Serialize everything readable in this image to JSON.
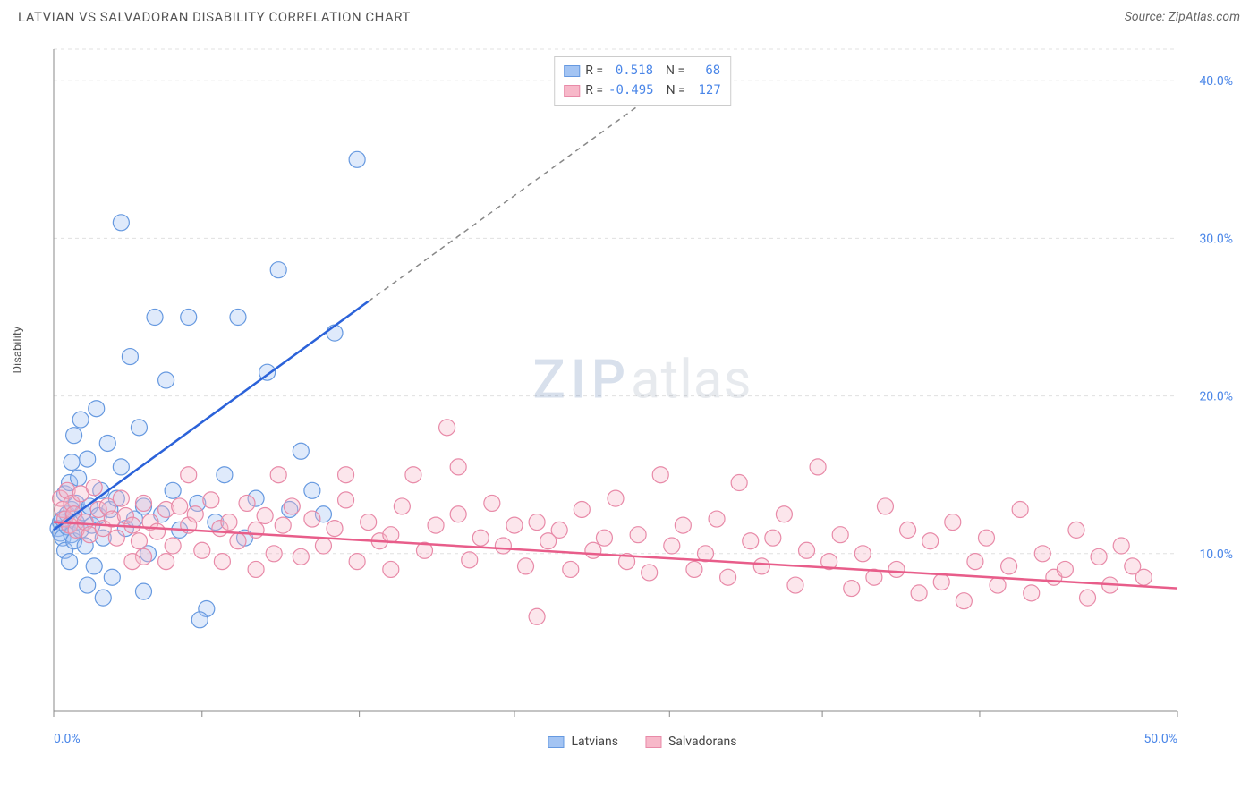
{
  "title": "LATVIAN VS SALVADORAN DISABILITY CORRELATION CHART",
  "source": "Source: ZipAtlas.com",
  "ylabel": "Disability",
  "watermark_a": "ZIP",
  "watermark_b": "atlas",
  "chart": {
    "type": "scatter",
    "xlim": [
      0,
      50
    ],
    "ylim": [
      0,
      42
    ],
    "xtick_positions": [
      0,
      6.6,
      13.6,
      20.5,
      27.4,
      34.2,
      41.2,
      50
    ],
    "xtick_labels": {
      "0": "0.0%",
      "50": "50.0%"
    },
    "ytick_positions": [
      10,
      20,
      30,
      40
    ],
    "ytick_labels": [
      "10.0%",
      "20.0%",
      "30.0%",
      "40.0%"
    ],
    "grid_color": "#e0e0e0",
    "grid_dash": "4,4",
    "axis_color": "#888888",
    "background_color": "#ffffff",
    "marker_radius": 9,
    "marker_stroke_width": 1.2,
    "marker_fill_opacity": 0.35,
    "series": [
      {
        "name": "Latvians",
        "color_fill": "#a3c4f3",
        "color_stroke": "#6699e0",
        "line_color": "#2b62d9",
        "R": "0.518",
        "N": "68",
        "trend": {
          "x1": 0,
          "y1": 11.5,
          "x2": 14,
          "y2": 26,
          "dash_x2": 29,
          "dash_y2": 41.5
        },
        "points": [
          [
            0.2,
            11.6
          ],
          [
            0.3,
            12.0
          ],
          [
            0.3,
            11.3
          ],
          [
            0.4,
            12.2
          ],
          [
            0.4,
            11.0
          ],
          [
            0.5,
            13.8
          ],
          [
            0.5,
            10.2
          ],
          [
            0.6,
            12.5
          ],
          [
            0.6,
            11.7
          ],
          [
            0.7,
            14.5
          ],
          [
            0.7,
            9.5
          ],
          [
            0.8,
            12.8
          ],
          [
            0.8,
            11.2
          ],
          [
            0.9,
            17.5
          ],
          [
            0.9,
            10.8
          ],
          [
            1.0,
            12.0
          ],
          [
            1.0,
            13.2
          ],
          [
            1.1,
            14.8
          ],
          [
            1.2,
            18.5
          ],
          [
            1.2,
            11.5
          ],
          [
            1.3,
            12.6
          ],
          [
            1.4,
            10.5
          ],
          [
            1.5,
            16.0
          ],
          [
            1.6,
            13.0
          ],
          [
            1.7,
            11.8
          ],
          [
            1.8,
            9.2
          ],
          [
            1.9,
            19.2
          ],
          [
            2.0,
            12.4
          ],
          [
            2.1,
            14.0
          ],
          [
            2.2,
            11.0
          ],
          [
            2.4,
            17.0
          ],
          [
            2.5,
            12.8
          ],
          [
            2.6,
            8.5
          ],
          [
            2.8,
            13.5
          ],
          [
            3.0,
            15.5
          ],
          [
            3.2,
            11.6
          ],
          [
            3.4,
            22.5
          ],
          [
            3.6,
            12.2
          ],
          [
            3.8,
            18.0
          ],
          [
            4.0,
            13.0
          ],
          [
            4.2,
            10.0
          ],
          [
            4.5,
            25.0
          ],
          [
            4.8,
            12.5
          ],
          [
            5.0,
            21.0
          ],
          [
            5.3,
            14.0
          ],
          [
            5.6,
            11.5
          ],
          [
            6.0,
            25.0
          ],
          [
            6.4,
            13.2
          ],
          [
            6.8,
            6.5
          ],
          [
            7.2,
            12.0
          ],
          [
            7.6,
            15.0
          ],
          [
            8.2,
            25.0
          ],
          [
            8.5,
            11.0
          ],
          [
            9.0,
            13.5
          ],
          [
            9.5,
            21.5
          ],
          [
            10.0,
            28.0
          ],
          [
            10.5,
            12.8
          ],
          [
            11.0,
            16.5
          ],
          [
            11.5,
            14.0
          ],
          [
            12.0,
            12.5
          ],
          [
            12.5,
            24.0
          ],
          [
            3.0,
            31.0
          ],
          [
            4.0,
            7.6
          ],
          [
            6.5,
            5.8
          ],
          [
            1.5,
            8.0
          ],
          [
            2.2,
            7.2
          ],
          [
            0.8,
            15.8
          ],
          [
            13.5,
            35.0
          ]
        ]
      },
      {
        "name": "Salvadorans",
        "color_fill": "#f7b8c9",
        "color_stroke": "#e88aa8",
        "line_color": "#e85d8a",
        "R": "-0.495",
        "N": "127",
        "trend": {
          "x1": 0,
          "y1": 12.0,
          "x2": 50,
          "y2": 7.8
        },
        "points": [
          [
            0.3,
            13.5
          ],
          [
            0.4,
            12.8
          ],
          [
            0.5,
            12.2
          ],
          [
            0.6,
            14.0
          ],
          [
            0.7,
            11.8
          ],
          [
            0.8,
            13.2
          ],
          [
            0.9,
            12.5
          ],
          [
            1.0,
            11.5
          ],
          [
            1.2,
            13.8
          ],
          [
            1.4,
            12.0
          ],
          [
            1.6,
            11.2
          ],
          [
            1.8,
            14.2
          ],
          [
            2.0,
            12.8
          ],
          [
            2.2,
            11.6
          ],
          [
            2.4,
            13.0
          ],
          [
            2.6,
            12.2
          ],
          [
            2.8,
            11.0
          ],
          [
            3.0,
            13.5
          ],
          [
            3.2,
            12.4
          ],
          [
            3.5,
            11.8
          ],
          [
            3.8,
            10.8
          ],
          [
            4.0,
            13.2
          ],
          [
            4.3,
            12.0
          ],
          [
            4.6,
            11.4
          ],
          [
            5.0,
            12.8
          ],
          [
            5.3,
            10.5
          ],
          [
            5.6,
            13.0
          ],
          [
            6.0,
            11.8
          ],
          [
            6.3,
            12.5
          ],
          [
            6.6,
            10.2
          ],
          [
            7.0,
            13.4
          ],
          [
            7.4,
            11.6
          ],
          [
            7.8,
            12.0
          ],
          [
            8.2,
            10.8
          ],
          [
            8.6,
            13.2
          ],
          [
            9.0,
            11.5
          ],
          [
            9.4,
            12.4
          ],
          [
            9.8,
            10.0
          ],
          [
            10.2,
            11.8
          ],
          [
            10.6,
            13.0
          ],
          [
            11.0,
            9.8
          ],
          [
            11.5,
            12.2
          ],
          [
            12.0,
            10.5
          ],
          [
            12.5,
            11.6
          ],
          [
            13.0,
            13.4
          ],
          [
            13.5,
            9.5
          ],
          [
            14.0,
            12.0
          ],
          [
            14.5,
            10.8
          ],
          [
            15.0,
            11.2
          ],
          [
            15.5,
            13.0
          ],
          [
            16.0,
            15.0
          ],
          [
            16.5,
            10.2
          ],
          [
            17.0,
            11.8
          ],
          [
            17.5,
            18.0
          ],
          [
            18.0,
            12.5
          ],
          [
            18.5,
            9.6
          ],
          [
            19.0,
            11.0
          ],
          [
            19.5,
            13.2
          ],
          [
            20.0,
            10.5
          ],
          [
            20.5,
            11.8
          ],
          [
            21.0,
            9.2
          ],
          [
            21.5,
            12.0
          ],
          [
            22.0,
            10.8
          ],
          [
            22.5,
            11.5
          ],
          [
            23.0,
            9.0
          ],
          [
            23.5,
            12.8
          ],
          [
            24.0,
            10.2
          ],
          [
            24.5,
            11.0
          ],
          [
            25.0,
            13.5
          ],
          [
            25.5,
            9.5
          ],
          [
            26.0,
            11.2
          ],
          [
            26.5,
            8.8
          ],
          [
            27.0,
            15.0
          ],
          [
            27.5,
            10.5
          ],
          [
            28.0,
            11.8
          ],
          [
            28.5,
            9.0
          ],
          [
            29.0,
            10.0
          ],
          [
            29.5,
            12.2
          ],
          [
            30.0,
            8.5
          ],
          [
            30.5,
            14.5
          ],
          [
            31.0,
            10.8
          ],
          [
            31.5,
            9.2
          ],
          [
            32.0,
            11.0
          ],
          [
            32.5,
            12.5
          ],
          [
            33.0,
            8.0
          ],
          [
            33.5,
            10.2
          ],
          [
            34.0,
            15.5
          ],
          [
            34.5,
            9.5
          ],
          [
            35.0,
            11.2
          ],
          [
            35.5,
            7.8
          ],
          [
            36.0,
            10.0
          ],
          [
            36.5,
            8.5
          ],
          [
            37.0,
            13.0
          ],
          [
            37.5,
            9.0
          ],
          [
            38.0,
            11.5
          ],
          [
            38.5,
            7.5
          ],
          [
            39.0,
            10.8
          ],
          [
            39.5,
            8.2
          ],
          [
            40.0,
            12.0
          ],
          [
            40.5,
            7.0
          ],
          [
            41.0,
            9.5
          ],
          [
            41.5,
            11.0
          ],
          [
            42.0,
            8.0
          ],
          [
            42.5,
            9.2
          ],
          [
            43.0,
            12.8
          ],
          [
            43.5,
            7.5
          ],
          [
            44.0,
            10.0
          ],
          [
            44.5,
            8.5
          ],
          [
            45.0,
            9.0
          ],
          [
            45.5,
            11.5
          ],
          [
            46.0,
            7.2
          ],
          [
            46.5,
            9.8
          ],
          [
            47.0,
            8.0
          ],
          [
            47.5,
            10.5
          ],
          [
            48.0,
            9.2
          ],
          [
            48.5,
            8.5
          ],
          [
            21.5,
            6.0
          ],
          [
            15.0,
            9.0
          ],
          [
            10.0,
            15.0
          ],
          [
            13.0,
            15.0
          ],
          [
            18.0,
            15.5
          ],
          [
            9.0,
            9.0
          ],
          [
            7.5,
            9.5
          ],
          [
            5.0,
            9.5
          ],
          [
            6.0,
            15.0
          ],
          [
            4.0,
            9.8
          ],
          [
            3.5,
            9.5
          ]
        ]
      }
    ]
  },
  "legend_top": [
    {
      "swatch_fill": "#a3c4f3",
      "swatch_stroke": "#6699e0",
      "r_label": "R =",
      "r_val": "0.518",
      "n_label": "N =",
      "n_val": "68"
    },
    {
      "swatch_fill": "#f7b8c9",
      "swatch_stroke": "#e88aa8",
      "r_label": "R =",
      "r_val": "-0.495",
      "n_label": "N =",
      "n_val": "127"
    }
  ],
  "legend_bottom": [
    {
      "swatch_fill": "#a3c4f3",
      "swatch_stroke": "#6699e0",
      "label": "Latvians"
    },
    {
      "swatch_fill": "#f7b8c9",
      "swatch_stroke": "#e88aa8",
      "label": "Salvadorans"
    }
  ]
}
